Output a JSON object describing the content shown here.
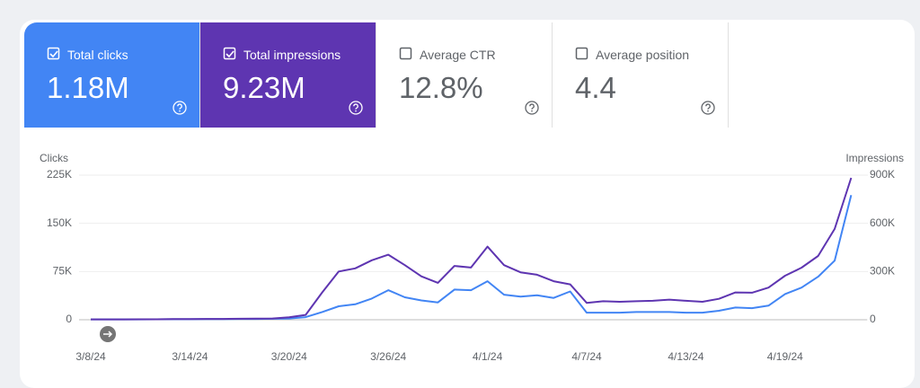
{
  "cards": [
    {
      "label": "Total clicks",
      "value": "1.18M",
      "selected": true,
      "color": "#4285f4"
    },
    {
      "label": "Total impressions",
      "value": "9.23M",
      "selected": true,
      "color": "#5e35b1"
    },
    {
      "label": "Average CTR",
      "value": "12.8%",
      "selected": false,
      "color": "#ffffff"
    },
    {
      "label": "Average position",
      "value": "4.4",
      "selected": false,
      "color": "#ffffff"
    }
  ],
  "chart_data": {
    "type": "line",
    "ylabel": "Clicks",
    "y2label": "Impressions",
    "categories": [
      "3/8/24",
      null,
      null,
      null,
      null,
      null,
      "3/14/24",
      null,
      null,
      null,
      null,
      null,
      "3/20/24",
      null,
      null,
      null,
      null,
      null,
      "3/26/24",
      null,
      null,
      null,
      null,
      null,
      "4/1/24",
      null,
      null,
      null,
      null,
      null,
      "4/7/24",
      null,
      null,
      null,
      null,
      null,
      "4/13/24",
      null,
      null,
      null,
      null,
      null,
      "4/19/24",
      null,
      null,
      null,
      null
    ],
    "series": [
      {
        "color": "#4285f4",
        "axis": "y",
        "values": [
          500,
          500,
          600,
          600,
          700,
          800,
          900,
          1000,
          1000,
          1200,
          1300,
          1500,
          2000,
          4000,
          12000,
          21000,
          24000,
          33000,
          46000,
          35000,
          30000,
          27000,
          47000,
          46000,
          60000,
          39000,
          36000,
          38000,
          34000,
          44000,
          11000,
          11000,
          11000,
          12000,
          12000,
          12000,
          11000,
          11000,
          14000,
          19000,
          18000,
          22000,
          40000,
          50000,
          67000,
          92000,
          194000
        ]
      },
      {
        "color": "#5e35b1",
        "axis": "y2",
        "values": [
          2000,
          2000,
          2000,
          3000,
          3000,
          4000,
          4000,
          5000,
          5000,
          6000,
          7000,
          8000,
          15000,
          30000,
          170000,
          300000,
          320000,
          370000,
          405000,
          340000,
          270000,
          230000,
          335000,
          325000,
          455000,
          340000,
          295000,
          280000,
          240000,
          220000,
          105000,
          115000,
          112000,
          115000,
          118000,
          125000,
          118000,
          112000,
          130000,
          170000,
          168000,
          200000,
          274000,
          324000,
          397000,
          565000,
          883000
        ]
      }
    ],
    "ylim": [
      0,
      225000
    ],
    "yticks": [
      0,
      {
        "value": 75000,
        "label": "75K"
      },
      {
        "value": 150000,
        "label": "150K"
      },
      {
        "value": 225000,
        "label": "225K"
      }
    ],
    "y2lim": [
      0,
      900000
    ],
    "y2ticks": [
      0,
      {
        "value": 300000,
        "label": "300K"
      },
      {
        "value": 600000,
        "label": "600K"
      },
      {
        "value": 900000,
        "label": "900K"
      }
    ],
    "grid": true
  }
}
